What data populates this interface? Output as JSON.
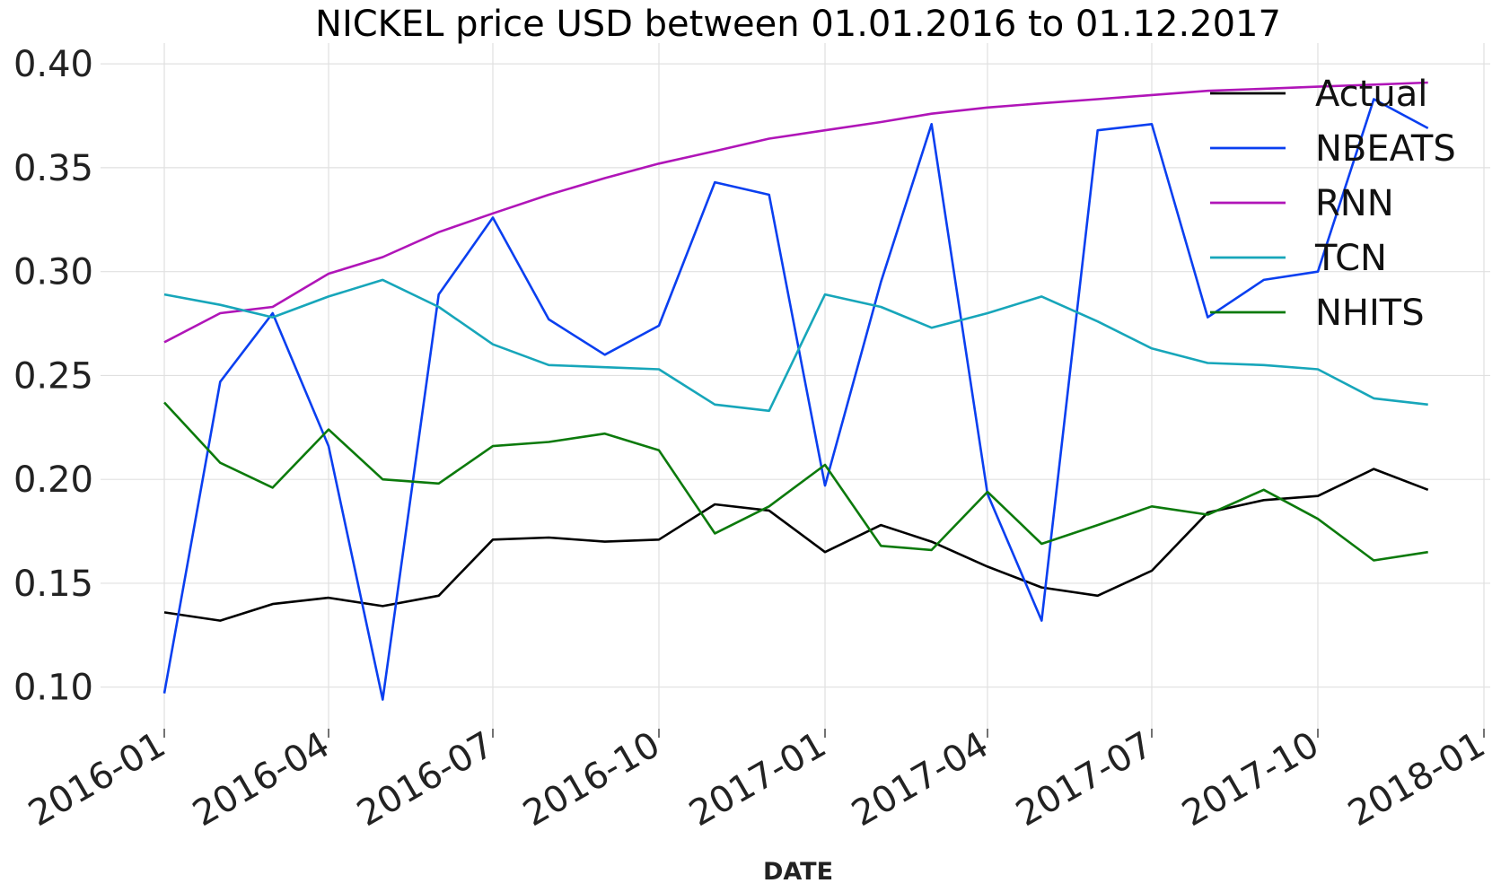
{
  "chart_data": {
    "type": "line",
    "title": "NICKEL price USD between 01.01.2016 to 01.12.2017",
    "xlabel": "DATE",
    "ylabel": "",
    "x": [
      "2016-01-01",
      "2016-02-01",
      "2016-03-01",
      "2016-04-01",
      "2016-05-01",
      "2016-06-01",
      "2016-07-01",
      "2016-08-01",
      "2016-09-01",
      "2016-10-01",
      "2016-11-01",
      "2016-12-01",
      "2017-01-01",
      "2017-02-01",
      "2017-03-01",
      "2017-04-01",
      "2017-05-01",
      "2017-06-01",
      "2017-07-01",
      "2017-08-01",
      "2017-09-01",
      "2017-10-01",
      "2017-11-01",
      "2017-12-01"
    ],
    "x_ticks": [
      "2016-01",
      "2016-04",
      "2016-07",
      "2016-10",
      "2017-01",
      "2017-04",
      "2017-07",
      "2017-10",
      "2018-01"
    ],
    "xlim": [
      "2016-01-01",
      "2018-01-01"
    ],
    "ylim": [
      0.08,
      0.41
    ],
    "y_ticks": [
      0.1,
      0.15,
      0.2,
      0.25,
      0.3,
      0.35,
      0.4
    ],
    "y_tick_labels": [
      "0.10",
      "0.15",
      "0.20",
      "0.25",
      "0.30",
      "0.35",
      "0.40"
    ],
    "grid": true,
    "legend_position": "top-right",
    "series": [
      {
        "name": "Actual",
        "color": "#000000",
        "values": [
          0.136,
          0.132,
          0.14,
          0.143,
          0.139,
          0.144,
          0.171,
          0.172,
          0.17,
          0.171,
          0.188,
          0.185,
          0.165,
          0.178,
          0.17,
          0.158,
          0.148,
          0.144,
          0.156,
          0.184,
          0.19,
          0.192,
          0.205,
          0.195
        ]
      },
      {
        "name": "NBEATS",
        "color": "#0a3ff0",
        "values": [
          0.097,
          0.247,
          0.28,
          0.216,
          0.094,
          0.289,
          0.326,
          0.277,
          0.26,
          0.274,
          0.343,
          0.337,
          0.197,
          0.295,
          0.371,
          0.193,
          0.132,
          0.368,
          0.371,
          0.278,
          0.296,
          0.3,
          0.383,
          0.369
        ]
      },
      {
        "name": "RNN",
        "color": "#b015b8",
        "values": [
          0.266,
          0.28,
          0.283,
          0.299,
          0.307,
          0.319,
          0.328,
          0.337,
          0.345,
          0.352,
          0.358,
          0.364,
          0.368,
          0.372,
          0.376,
          0.379,
          0.381,
          0.383,
          0.385,
          0.387,
          0.388,
          0.389,
          0.39,
          0.391
        ]
      },
      {
        "name": "TCN",
        "color": "#17a6ba",
        "values": [
          0.289,
          0.284,
          0.278,
          0.288,
          0.296,
          0.283,
          0.265,
          0.255,
          0.254,
          0.253,
          0.236,
          0.233,
          0.289,
          0.283,
          0.273,
          0.28,
          0.288,
          0.276,
          0.263,
          0.256,
          0.255,
          0.253,
          0.239,
          0.236
        ]
      },
      {
        "name": "NHITS",
        "color": "#0c7a0c",
        "values": [
          0.237,
          0.208,
          0.196,
          0.224,
          0.2,
          0.198,
          0.216,
          0.218,
          0.222,
          0.214,
          0.174,
          0.187,
          0.207,
          0.168,
          0.166,
          0.194,
          0.169,
          0.178,
          0.187,
          0.183,
          0.195,
          0.181,
          0.161,
          0.165
        ]
      }
    ]
  }
}
